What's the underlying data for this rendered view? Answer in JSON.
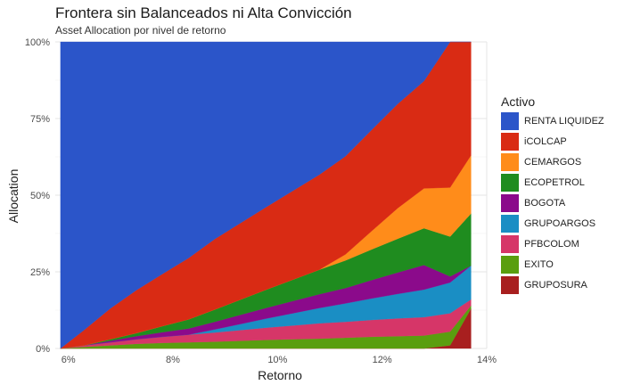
{
  "chart_data": {
    "type": "area",
    "title": "Frontera sin Balanceados ni Alta Convicción",
    "subtitle": "Asset Allocation por nivel de retorno",
    "xlabel": "Retorno",
    "ylabel": "Allocation",
    "xlim": [
      5.75,
      14.0
    ],
    "ylim": [
      0,
      1
    ],
    "x_ticks": [
      6,
      8,
      10,
      12,
      14
    ],
    "x_tick_labels": [
      "6%",
      "8%",
      "10%",
      "12%",
      "14%"
    ],
    "y_ticks": [
      0,
      0.25,
      0.5,
      0.75,
      1.0
    ],
    "y_tick_labels": [
      "0%",
      "25%",
      "50%",
      "75%",
      "100%"
    ],
    "grid": true,
    "stacked": true,
    "legend_title": "Activo",
    "legend_position": "right",
    "x": [
      5.85,
      6.3,
      6.8,
      7.3,
      7.8,
      8.3,
      8.8,
      9.3,
      9.8,
      10.3,
      10.8,
      11.3,
      11.8,
      12.3,
      12.8,
      13.3,
      13.7
    ],
    "series": [
      {
        "name": "GRUPOSURA",
        "color": "#a81f1f",
        "values": [
          0,
          0,
          0,
          0,
          0,
          0,
          0,
          0,
          0,
          0,
          0,
          0,
          0,
          0,
          0,
          0.01,
          0.13
        ]
      },
      {
        "name": "EXITO",
        "color": "#5a9e0f",
        "values": [
          0,
          0.005,
          0.01,
          0.015,
          0.018,
          0.02,
          0.022,
          0.025,
          0.028,
          0.03,
          0.032,
          0.035,
          0.038,
          0.04,
          0.042,
          0.045,
          0.01
        ]
      },
      {
        "name": "PFBCOLOM",
        "color": "#d63668",
        "values": [
          0,
          0.005,
          0.01,
          0.015,
          0.02,
          0.025,
          0.03,
          0.035,
          0.04,
          0.045,
          0.05,
          0.052,
          0.055,
          0.058,
          0.06,
          0.06,
          0.02
        ]
      },
      {
        "name": "GRUPOARGOS",
        "color": "#1a8ec4",
        "values": [
          0,
          0,
          0,
          0,
          0,
          0,
          0.01,
          0.02,
          0.03,
          0.04,
          0.05,
          0.06,
          0.07,
          0.08,
          0.09,
          0.1,
          0.11
        ]
      },
      {
        "name": "BOGOTA",
        "color": "#8b0a8b",
        "values": [
          0,
          0,
          0.005,
          0.01,
          0.015,
          0.02,
          0.025,
          0.03,
          0.035,
          0.04,
          0.045,
          0.05,
          0.06,
          0.07,
          0.08,
          0.02,
          0.0
        ]
      },
      {
        "name": "ECOPETROL",
        "color": "#1f8c1f",
        "values": [
          0,
          0,
          0.005,
          0.01,
          0.02,
          0.03,
          0.04,
          0.05,
          0.06,
          0.07,
          0.08,
          0.09,
          0.1,
          0.11,
          0.12,
          0.13,
          0.17
        ]
      },
      {
        "name": "CEMARGOS",
        "color": "#ff8c1a",
        "values": [
          0,
          0,
          0,
          0,
          0,
          0,
          0,
          0,
          0,
          0,
          0,
          0.02,
          0.06,
          0.1,
          0.13,
          0.16,
          0.19
        ]
      },
      {
        "name": "iCOLCAP",
        "color": "#d92b14",
        "values": [
          0,
          0.05,
          0.1,
          0.14,
          0.17,
          0.2,
          0.23,
          0.25,
          0.27,
          0.29,
          0.31,
          0.32,
          0.33,
          0.34,
          0.35,
          0.475,
          0.37
        ]
      },
      {
        "name": "RENTA LIQUIDEZ",
        "color": "#2b55c9",
        "values": [
          1.0,
          0.94,
          0.87,
          0.81,
          0.757,
          0.705,
          0.643,
          0.59,
          0.537,
          0.485,
          0.433,
          0.373,
          0.287,
          0.202,
          0.128,
          0.0,
          0.0
        ]
      }
    ],
    "legend": [
      {
        "name": "RENTA LIQUIDEZ",
        "color": "#2b55c9"
      },
      {
        "name": "iCOLCAP",
        "color": "#d92b14"
      },
      {
        "name": "CEMARGOS",
        "color": "#ff8c1a"
      },
      {
        "name": "ECOPETROL",
        "color": "#1f8c1f"
      },
      {
        "name": "BOGOTA",
        "color": "#8b0a8b"
      },
      {
        "name": "GRUPOARGOS",
        "color": "#1a8ec4"
      },
      {
        "name": "PFBCOLOM",
        "color": "#d63668"
      },
      {
        "name": "EXITO",
        "color": "#5a9e0f"
      },
      {
        "name": "GRUPOSURA",
        "color": "#a81f1f"
      }
    ]
  }
}
